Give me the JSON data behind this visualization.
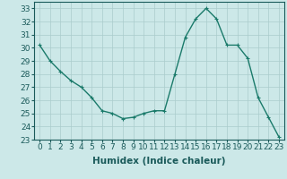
{
  "x": [
    0,
    1,
    2,
    3,
    4,
    5,
    6,
    7,
    8,
    9,
    10,
    11,
    12,
    13,
    14,
    15,
    16,
    17,
    18,
    19,
    20,
    21,
    22,
    23
  ],
  "y": [
    30.2,
    29.0,
    28.2,
    27.5,
    27.0,
    26.2,
    25.2,
    25.0,
    24.6,
    24.7,
    25.0,
    25.2,
    25.2,
    28.0,
    30.8,
    32.2,
    33.0,
    32.2,
    30.2,
    30.2,
    29.2,
    26.2,
    24.7,
    23.2
  ],
  "line_color": "#1a7a6a",
  "marker": "+",
  "marker_size": 3,
  "bg_color": "#cce8e8",
  "grid_color": "#aacccc",
  "xlabel": "Humidex (Indice chaleur)",
  "ylim": [
    23,
    33.5
  ],
  "yticks": [
    23,
    24,
    25,
    26,
    27,
    28,
    29,
    30,
    31,
    32,
    33
  ],
  "xticks": [
    0,
    1,
    2,
    3,
    4,
    5,
    6,
    7,
    8,
    9,
    10,
    11,
    12,
    13,
    14,
    15,
    16,
    17,
    18,
    19,
    20,
    21,
    22,
    23
  ],
  "line_width": 1.0,
  "tick_color": "#1a5a5a",
  "tick_fontsize": 6.5,
  "xlabel_fontsize": 7.5,
  "xlabel_fontweight": "bold"
}
